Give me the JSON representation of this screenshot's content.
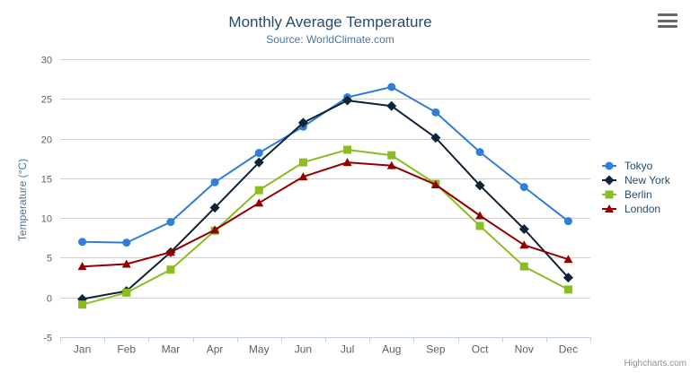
{
  "chart": {
    "title": "Monthly Average Temperature",
    "subtitle": "Source: WorldClimate.com",
    "credit": "Highcharts.com",
    "menu_icon": "hamburger-menu",
    "colors": {
      "title": "#274b6d",
      "subtitle": "#4d759e",
      "axis_labels": "#606060",
      "gridline": "#d0d0d0",
      "x_axis_line": "#c0d0e0",
      "legend_text": "#274b6d",
      "credit_text": "#909090"
    }
  },
  "chart_data": {
    "type": "line",
    "title": "Monthly Average Temperature",
    "subtitle": "Source: WorldClimate.com",
    "xlabel": "",
    "ylabel": "Temperature (°C)",
    "ylim": [
      -5,
      30
    ],
    "y_ticks": [
      -5,
      0,
      5,
      10,
      15,
      20,
      25,
      30
    ],
    "grid": true,
    "legend_position": "right",
    "categories": [
      "Jan",
      "Feb",
      "Mar",
      "Apr",
      "May",
      "Jun",
      "Jul",
      "Aug",
      "Sep",
      "Oct",
      "Nov",
      "Dec"
    ],
    "series": [
      {
        "name": "Tokyo",
        "color": "#2f7ed8",
        "marker": "circle",
        "values": [
          7.0,
          6.9,
          9.5,
          14.5,
          18.2,
          21.5,
          25.2,
          26.5,
          23.3,
          18.3,
          13.9,
          9.6
        ]
      },
      {
        "name": "New York",
        "color": "#0d233a",
        "marker": "diamond",
        "values": [
          -0.2,
          0.8,
          5.7,
          11.3,
          17.0,
          22.0,
          24.8,
          24.1,
          20.1,
          14.1,
          8.6,
          2.5
        ]
      },
      {
        "name": "Berlin",
        "color": "#8bbc21",
        "marker": "square",
        "values": [
          -0.9,
          0.6,
          3.5,
          8.4,
          13.5,
          17.0,
          18.6,
          17.9,
          14.3,
          9.0,
          3.9,
          1.0
        ]
      },
      {
        "name": "London",
        "color": "#910000",
        "marker": "triangle",
        "values": [
          3.9,
          4.2,
          5.7,
          8.5,
          11.9,
          15.2,
          17.0,
          16.6,
          14.2,
          10.3,
          6.6,
          4.8
        ]
      }
    ]
  }
}
